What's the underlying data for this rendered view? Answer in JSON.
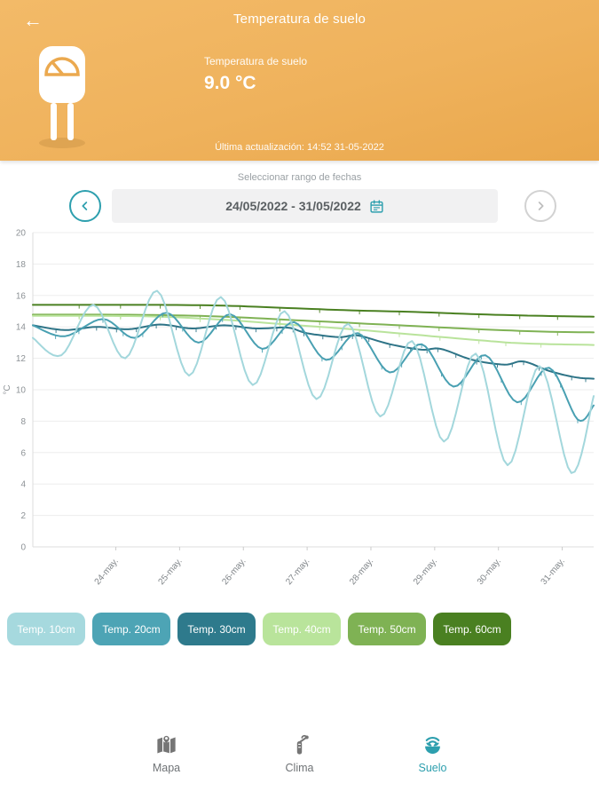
{
  "header": {
    "title": "Temperatura de suelo",
    "metric_label": "Temperatura de suelo",
    "metric_value": "9.0 °C",
    "last_update": "Última actualización: 14:52 31-05-2022"
  },
  "date_selector": {
    "label": "Seleccionar rango de fechas",
    "range": "24/05/2022 - 31/05/2022"
  },
  "chart_data": {
    "type": "line",
    "title": "",
    "xlabel": "",
    "ylabel": "°C",
    "ylim": [
      0,
      20
    ],
    "ytick_step": 2,
    "grid": true,
    "legend_position": "bottom",
    "x_labels": [
      "24-may.",
      "25-may.",
      "26-may.",
      "27-may.",
      "28-may.",
      "29-may.",
      "30-may.",
      "31-may."
    ],
    "x_span_days": 8.8,
    "series": [
      {
        "name": "Temp. 60cm",
        "color": "#4a8021",
        "whiskers": true,
        "points": [
          [
            0,
            15.4
          ],
          [
            1,
            15.4
          ],
          [
            2,
            15.4
          ],
          [
            3,
            15.35
          ],
          [
            4,
            15.2
          ],
          [
            5,
            15.05
          ],
          [
            6,
            14.95
          ],
          [
            7,
            14.8
          ],
          [
            8,
            14.7
          ],
          [
            8.8,
            14.65
          ]
        ]
      },
      {
        "name": "Temp. 50cm",
        "color": "#7fb254",
        "whiskers": true,
        "points": [
          [
            0,
            14.78
          ],
          [
            1,
            14.78
          ],
          [
            2,
            14.75
          ],
          [
            3,
            14.65
          ],
          [
            4,
            14.45
          ],
          [
            5,
            14.25
          ],
          [
            6,
            14.05
          ],
          [
            7,
            13.85
          ],
          [
            8,
            13.7
          ],
          [
            8.8,
            13.65
          ]
        ]
      },
      {
        "name": "Temp. 40cm",
        "color": "#b9e39b",
        "whiskers": true,
        "points": [
          [
            0,
            14.7
          ],
          [
            1,
            14.7
          ],
          [
            2,
            14.65
          ],
          [
            3,
            14.45
          ],
          [
            4,
            14.15
          ],
          [
            5,
            13.85
          ],
          [
            6,
            13.5
          ],
          [
            7,
            13.15
          ],
          [
            7.7,
            12.95
          ],
          [
            8.8,
            12.85
          ]
        ]
      },
      {
        "name": "Temp. 30cm",
        "color": "#2e7487",
        "whiskers": true,
        "points": [
          [
            0,
            14.1
          ],
          [
            0.5,
            13.8
          ],
          [
            1,
            14.0
          ],
          [
            1.5,
            13.85
          ],
          [
            2,
            14.15
          ],
          [
            2.5,
            13.9
          ],
          [
            3,
            14.1
          ],
          [
            3.5,
            13.9
          ],
          [
            4,
            13.95
          ],
          [
            4.3,
            13.6
          ],
          [
            4.8,
            13.35
          ],
          [
            5.1,
            13.45
          ],
          [
            5.6,
            12.9
          ],
          [
            6.1,
            12.55
          ],
          [
            6.4,
            12.6
          ],
          [
            6.9,
            11.9
          ],
          [
            7.4,
            11.6
          ],
          [
            7.7,
            11.8
          ],
          [
            8.1,
            11.2
          ],
          [
            8.5,
            10.8
          ],
          [
            8.8,
            10.7
          ]
        ]
      },
      {
        "name": "Temp. 20cm",
        "color": "#49a0b2",
        "whiskers": true,
        "points": [
          [
            0,
            14.1
          ],
          [
            0.5,
            13.4
          ],
          [
            1.1,
            14.5
          ],
          [
            1.6,
            13.3
          ],
          [
            2.1,
            14.9
          ],
          [
            2.6,
            13.0
          ],
          [
            3.1,
            14.8
          ],
          [
            3.6,
            12.6
          ],
          [
            4.1,
            14.3
          ],
          [
            4.6,
            11.9
          ],
          [
            5.1,
            13.6
          ],
          [
            5.6,
            11.1
          ],
          [
            6.1,
            12.9
          ],
          [
            6.6,
            10.2
          ],
          [
            7.1,
            12.2
          ],
          [
            7.6,
            9.2
          ],
          [
            8.1,
            11.4
          ],
          [
            8.55,
            8.1
          ],
          [
            8.8,
            9.0
          ]
        ]
      },
      {
        "name": "Temp. 10cm",
        "color": "#a3d7dc",
        "whiskers": false,
        "points": [
          [
            0,
            13.3
          ],
          [
            0.45,
            12.2
          ],
          [
            0.95,
            15.4
          ],
          [
            1.45,
            12.0
          ],
          [
            1.95,
            16.3
          ],
          [
            2.45,
            10.9
          ],
          [
            2.95,
            15.9
          ],
          [
            3.45,
            10.3
          ],
          [
            3.95,
            15.0
          ],
          [
            4.45,
            9.4
          ],
          [
            4.95,
            14.2
          ],
          [
            5.45,
            8.3
          ],
          [
            5.95,
            13.1
          ],
          [
            6.45,
            6.7
          ],
          [
            6.95,
            12.3
          ],
          [
            7.45,
            5.2
          ],
          [
            7.95,
            11.5
          ],
          [
            8.45,
            4.7
          ],
          [
            8.8,
            9.6
          ]
        ]
      }
    ]
  },
  "legend": {
    "buttons": [
      {
        "label": "Temp. 10cm",
        "color": "#a6d9de"
      },
      {
        "label": "Temp. 20cm",
        "color": "#4da4b5"
      },
      {
        "label": "Temp. 30cm",
        "color": "#2e7a8c"
      },
      {
        "label": "Temp. 40cm",
        "color": "#b9e49b"
      },
      {
        "label": "Temp. 50cm",
        "color": "#7fb254"
      },
      {
        "label": "Temp. 60cm",
        "color": "#4a8021"
      }
    ]
  },
  "bottom_nav": {
    "items": [
      {
        "label": "Mapa",
        "active": false
      },
      {
        "label": "Clima",
        "active": false
      },
      {
        "label": "Suelo",
        "active": true
      }
    ],
    "active_color": "#2d9fae",
    "inactive_color": "#757575"
  },
  "colors": {
    "header_orange": "#efb25c",
    "accent_teal": "#2d9fae"
  }
}
